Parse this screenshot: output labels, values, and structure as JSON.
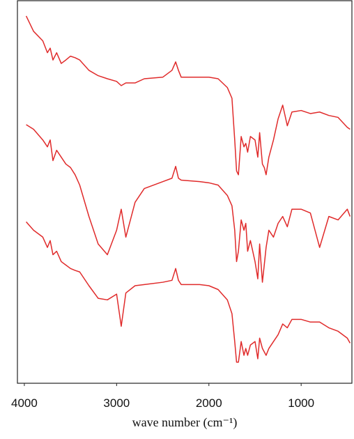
{
  "chart_data": {
    "type": "line",
    "x_label": "wave number (cm⁻¹)",
    "xlim": [
      4075,
      450
    ],
    "xticks": [
      4000,
      3000,
      2000,
      1000
    ],
    "ylim": [
      0,
      100
    ],
    "x": [
      3980,
      3900,
      3800,
      3750,
      3720,
      3690,
      3650,
      3600,
      3550,
      3500,
      3450,
      3400,
      3300,
      3200,
      3100,
      3000,
      2950,
      2900,
      2800,
      2700,
      2500,
      2400,
      2360,
      2330,
      2300,
      2100,
      2000,
      1900,
      1800,
      1750,
      1720,
      1700,
      1680,
      1650,
      1620,
      1600,
      1580,
      1550,
      1500,
      1470,
      1450,
      1420,
      1400,
      1380,
      1350,
      1300,
      1250,
      1200,
      1150,
      1100,
      1000,
      900,
      800,
      700,
      600,
      500,
      470
    ],
    "series": [
      {
        "color": "#e02a2a",
        "values": [
          96,
          92,
          89.5,
          86.4,
          87.6,
          84.5,
          86.4,
          83.6,
          84.5,
          85.5,
          85.1,
          84.5,
          81.8,
          80.4,
          79.6,
          78.9,
          77.8,
          78.5,
          78.5,
          79.6,
          80,
          81.8,
          84,
          81.8,
          80,
          80,
          80,
          79.6,
          77.3,
          74.5,
          63.6,
          55.5,
          54.5,
          64.5,
          61.8,
          62.7,
          60.4,
          64.5,
          63.6,
          59.1,
          65.5,
          57.3,
          56.4,
          54.5,
          59.1,
          63.6,
          69.1,
          72.7,
          67.3,
          70.9,
          71.3,
          70.5,
          70.9,
          70,
          69.5,
          66.9,
          66.4
        ]
      },
      {
        "color": "#e02a2a",
        "values": [
          67.6,
          66.4,
          63.6,
          61.8,
          63.6,
          58.2,
          60.9,
          59.1,
          57.3,
          56.4,
          54.5,
          51.8,
          43.6,
          36.4,
          33.6,
          40,
          45.5,
          38.2,
          47.3,
          50.9,
          52.7,
          53.6,
          56.7,
          53.6,
          53.1,
          52.7,
          52.4,
          51.8,
          49.1,
          46.4,
          40,
          31.8,
          34.5,
          42.7,
          40,
          41.8,
          34.5,
          37.3,
          31.8,
          27.3,
          36.4,
          26.4,
          30.9,
          35.5,
          40,
          38.2,
          41.8,
          43.6,
          40.9,
          45.5,
          45.5,
          44.5,
          35.5,
          43.6,
          42.7,
          45.5,
          43.6
        ]
      },
      {
        "color": "#e02a2a",
        "values": [
          42.2,
          40,
          38.2,
          35.5,
          37.3,
          33.6,
          34.5,
          31.8,
          30.9,
          30,
          29.5,
          29.1,
          25.5,
          22.2,
          21.8,
          23.3,
          14.9,
          23.6,
          25.5,
          25.8,
          26.4,
          26.9,
          30,
          26.9,
          25.8,
          25.8,
          25.5,
          24.5,
          21.8,
          18.2,
          10.9,
          5.5,
          5.5,
          10.9,
          7.3,
          9.1,
          7.3,
          10,
          10.9,
          6.4,
          11.8,
          9.1,
          8.2,
          7.3,
          9.1,
          10.9,
          12.7,
          15.5,
          14.5,
          16.7,
          16.7,
          16,
          16,
          14.5,
          13.6,
          11.8,
          10.5
        ]
      }
    ]
  }
}
